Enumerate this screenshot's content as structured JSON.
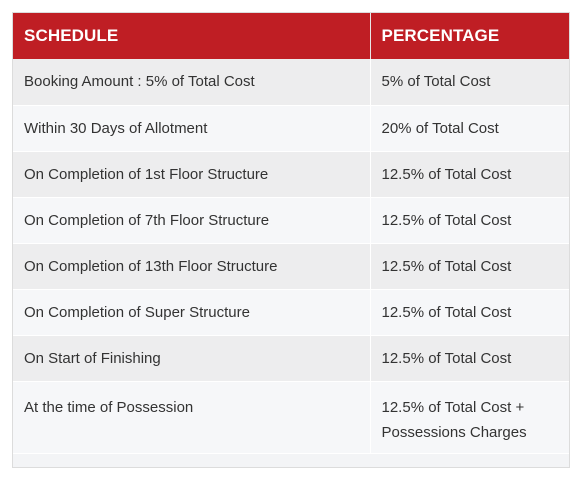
{
  "table": {
    "headers": [
      "SCHEDULE",
      "PERCENTAGE"
    ],
    "rows": [
      {
        "schedule": "Booking Amount : 5% of Total Cost",
        "percentage": "5% of Total Cost"
      },
      {
        "schedule": "Within 30 Days of Allotment",
        "percentage": "20% of Total Cost"
      },
      {
        "schedule": "On Completion of 1st Floor Structure",
        "percentage": "12.5% of Total Cost"
      },
      {
        "schedule": "On Completion of 7th Floor Structure",
        "percentage": "12.5% of Total Cost"
      },
      {
        "schedule": "On Completion of 13th Floor Structure",
        "percentage": "12.5% of Total Cost"
      },
      {
        "schedule": "On Completion of Super Structure",
        "percentage": "12.5% of Total Cost"
      },
      {
        "schedule": "On Start of Finishing",
        "percentage": "12.5% of Total Cost"
      },
      {
        "schedule": "At the time of Possession",
        "percentage": "12.5% of Total Cost + Possessions Charges"
      }
    ]
  },
  "colors": {
    "header_bg": "#bf1e24",
    "header_text": "#ffffff",
    "row_odd": "#ededee",
    "row_even": "#f6f7f9"
  }
}
